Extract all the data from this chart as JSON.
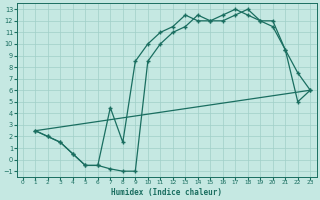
{
  "background_color": "#c5e8e2",
  "grid_color": "#a0cfc8",
  "line_color": "#1a6e60",
  "xlabel": "Humidex (Indice chaleur)",
  "xlim": [
    -0.5,
    23.5
  ],
  "ylim": [
    -1.5,
    13.5
  ],
  "xticks": [
    0,
    1,
    2,
    3,
    4,
    5,
    6,
    7,
    8,
    9,
    10,
    11,
    12,
    13,
    14,
    15,
    16,
    17,
    18,
    19,
    20,
    21,
    22,
    23
  ],
  "yticks": [
    -1,
    0,
    1,
    2,
    3,
    4,
    5,
    6,
    7,
    8,
    9,
    10,
    11,
    12,
    13
  ],
  "curve1_x": [
    1,
    2,
    3,
    4,
    5,
    6,
    7,
    8,
    9,
    10,
    11,
    12,
    13,
    14,
    15,
    16,
    17,
    18,
    19,
    20,
    21,
    22,
    23
  ],
  "curve1_y": [
    2.5,
    2,
    1.5,
    0.5,
    -0.5,
    -0.5,
    4.5,
    1.5,
    8.5,
    10,
    11,
    11.5,
    12.5,
    12,
    12,
    12.5,
    13,
    12.5,
    12,
    12,
    9.5,
    7.5,
    6
  ],
  "curve2_x": [
    1,
    2,
    3,
    4,
    5,
    6,
    7,
    8,
    9,
    10,
    11,
    12,
    13,
    14,
    15,
    16,
    17,
    18,
    19,
    20,
    21,
    22,
    23
  ],
  "curve2_y": [
    2.5,
    2,
    1.5,
    0.5,
    -0.5,
    -0.5,
    -0.8,
    -1,
    -1,
    8.5,
    10,
    11,
    11.5,
    12.5,
    12,
    12,
    12.5,
    13,
    12,
    11.5,
    9.5,
    5,
    6
  ],
  "line3_x": [
    1,
    23
  ],
  "line3_y": [
    2.5,
    6
  ],
  "marker_size": 3.5
}
